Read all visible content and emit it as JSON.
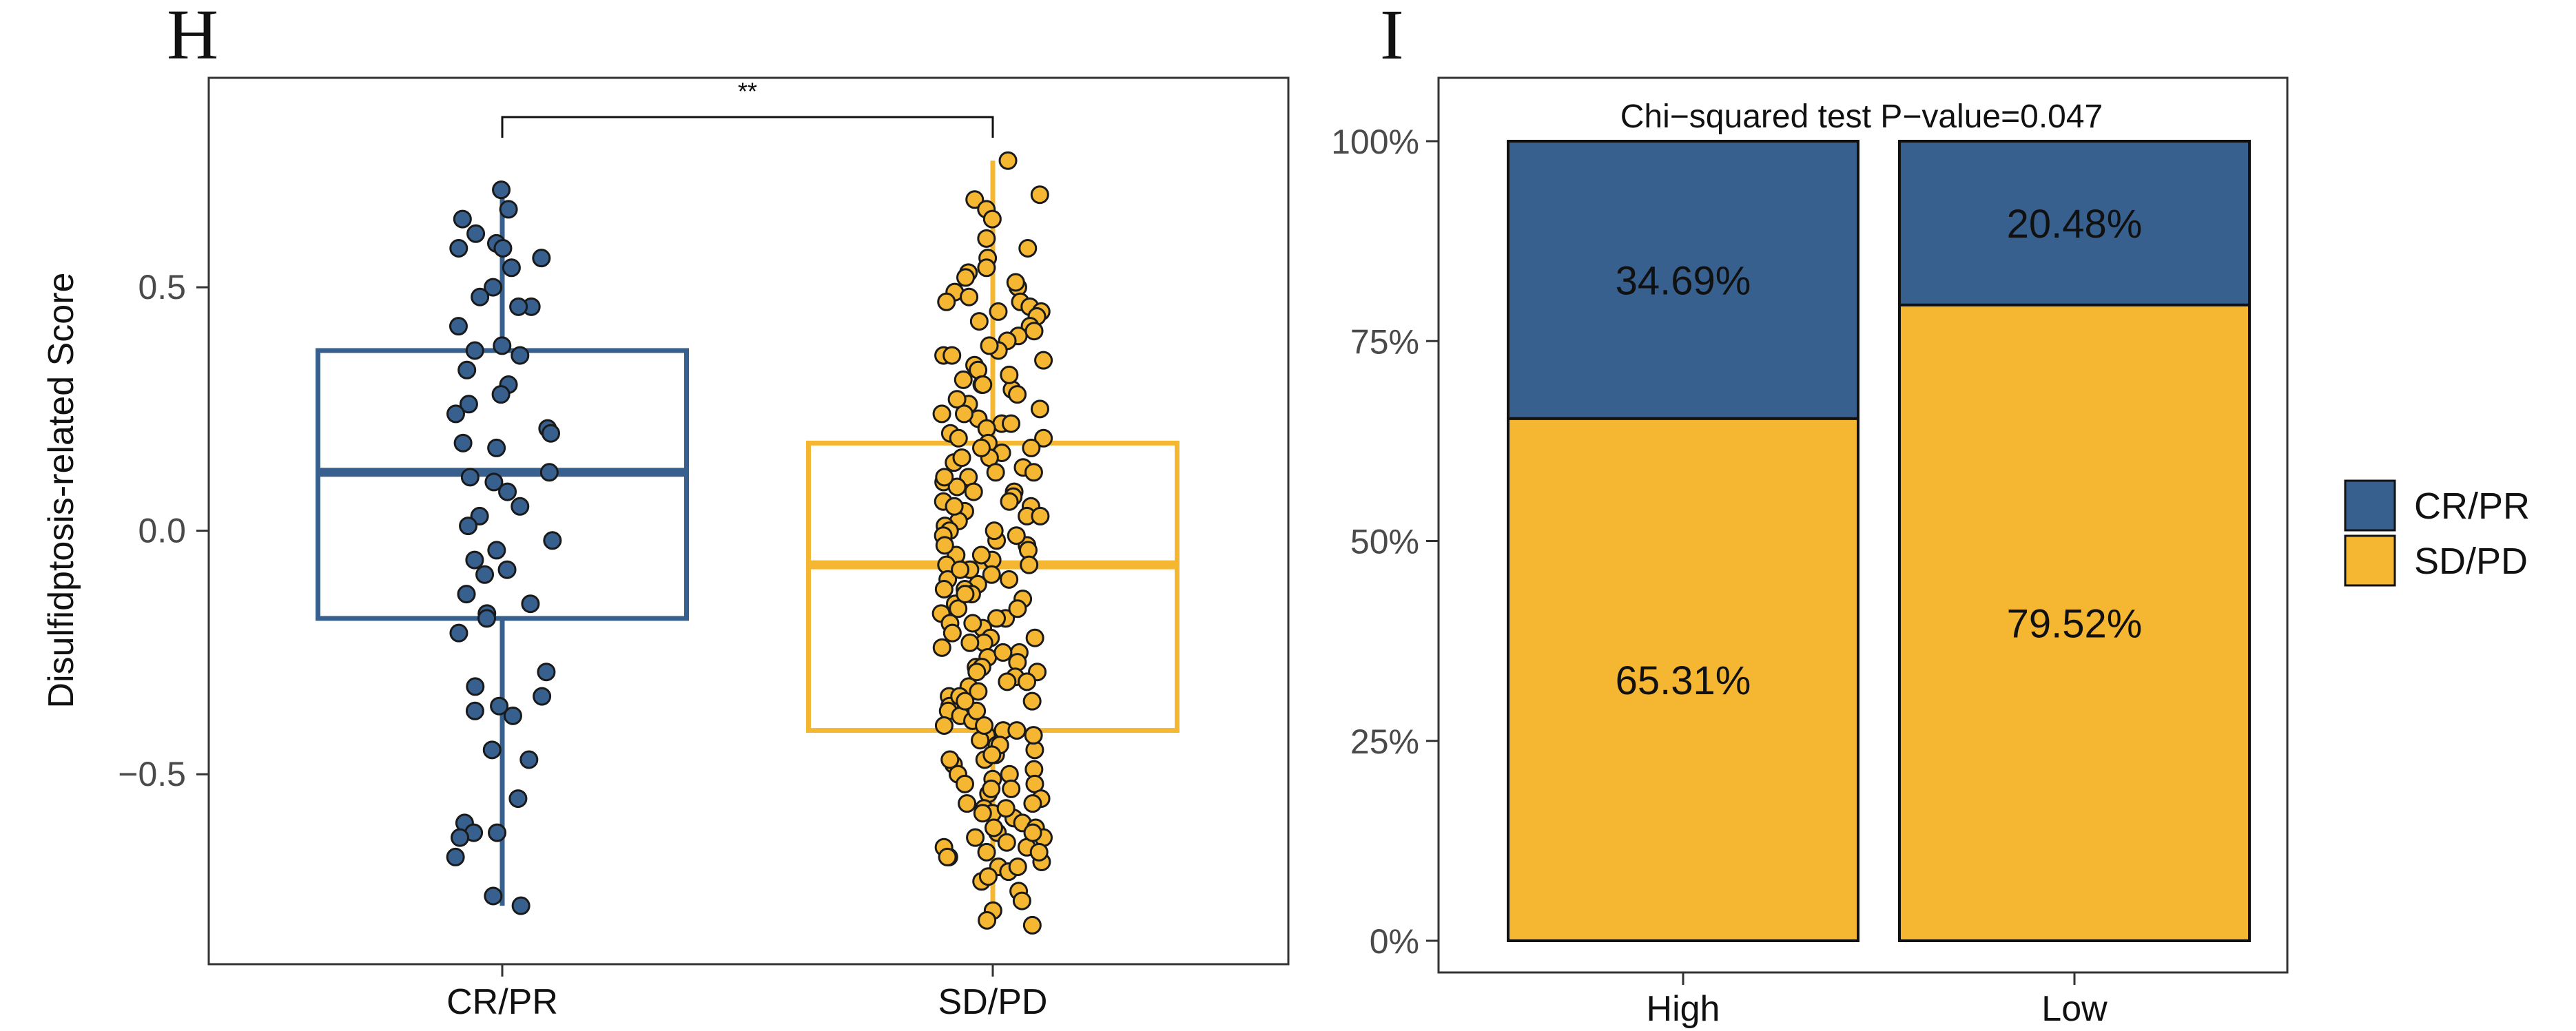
{
  "colors": {
    "crpr": "#37608e",
    "sdpd": "#f5b731",
    "frame": "#333333",
    "point_stroke": "#1a1a1a"
  },
  "chart_data": [
    {
      "panel": "H",
      "type": "box+jitter",
      "ylabel": "Disulfidptosis-related Score",
      "yticks": [
        "0.5",
        "0.0",
        "−0.5"
      ],
      "ytick_values": [
        0.5,
        0.0,
        -0.5
      ],
      "ylim": [
        -0.89,
        0.93
      ],
      "categories": [
        "CR/PR",
        "SD/PD"
      ],
      "significance": "**",
      "boxes": [
        {
          "name": "CR/PR",
          "q1": -0.18,
          "median": 0.12,
          "q3": 0.37,
          "whisker_low": -0.77,
          "whisker_high": 0.7
        },
        {
          "name": "SD/PD",
          "q1": -0.41,
          "median": -0.07,
          "q3": 0.18,
          "whisker_low": -0.81,
          "whisker_high": 0.76
        }
      ],
      "points": [
        {
          "group": "CR/PR",
          "values": [
            0.7,
            0.66,
            0.64,
            0.61,
            0.59,
            0.58,
            0.58,
            0.56,
            0.54,
            0.5,
            0.48,
            0.46,
            0.46,
            0.42,
            0.38,
            0.37,
            0.36,
            0.33,
            0.3,
            0.28,
            0.26,
            0.24,
            0.21,
            0.2,
            0.18,
            0.17,
            0.12,
            0.11,
            0.1,
            0.08,
            0.05,
            0.03,
            0.01,
            -0.02,
            -0.04,
            -0.06,
            -0.08,
            -0.09,
            -0.13,
            -0.15,
            -0.17,
            -0.18,
            -0.21,
            -0.29,
            -0.32,
            -0.34,
            -0.36,
            -0.37,
            -0.38,
            -0.45,
            -0.47,
            -0.55,
            -0.6,
            -0.62,
            -0.62,
            -0.63,
            -0.67,
            -0.75,
            -0.77
          ]
        },
        {
          "group": "SD/PD",
          "values": [
            0.76,
            0.69,
            0.68,
            0.66,
            0.64,
            0.6,
            0.58,
            0.56,
            0.54,
            0.53,
            0.52,
            0.5,
            0.49,
            0.48,
            0.47,
            0.46,
            0.45,
            0.44,
            0.42,
            0.4,
            0.39,
            0.37,
            0.36,
            0.34,
            0.33,
            0.31,
            0.3,
            0.29,
            0.28,
            0.26,
            0.25,
            0.24,
            0.23,
            0.22,
            0.21,
            0.2,
            0.19,
            0.18,
            0.17,
            0.16,
            0.15,
            0.14,
            0.13,
            0.12,
            0.11,
            0.1,
            0.09,
            0.08,
            0.07,
            0.06,
            0.05,
            0.04,
            0.03,
            0.02,
            0.01,
            0.0,
            -0.01,
            -0.02,
            -0.03,
            -0.04,
            -0.05,
            -0.06,
            -0.07,
            -0.08,
            -0.09,
            -0.1,
            -0.11,
            -0.12,
            -0.13,
            -0.14,
            -0.15,
            -0.16,
            -0.17,
            -0.18,
            -0.19,
            -0.2,
            -0.21,
            -0.22,
            -0.23,
            -0.24,
            -0.25,
            -0.26,
            -0.27,
            -0.28,
            -0.29,
            -0.3,
            -0.31,
            -0.32,
            -0.33,
            -0.34,
            -0.35,
            -0.36,
            -0.37,
            -0.38,
            -0.39,
            -0.4,
            -0.41,
            -0.42,
            -0.43,
            -0.44,
            -0.45,
            -0.46,
            -0.47,
            -0.48,
            -0.49,
            -0.5,
            -0.51,
            -0.52,
            -0.53,
            -0.54,
            -0.55,
            -0.56,
            -0.57,
            -0.58,
            -0.59,
            -0.6,
            -0.61,
            -0.62,
            -0.63,
            -0.64,
            -0.65,
            -0.66,
            -0.67,
            -0.68,
            -0.69,
            -0.7,
            -0.72,
            -0.74,
            -0.76,
            -0.78,
            -0.8,
            -0.81,
            0.51,
            0.47,
            0.43,
            0.38,
            0.35,
            0.32,
            0.27,
            0.22,
            0.19,
            0.15,
            0.12,
            0.08,
            0.06,
            0.03,
            0.0,
            -0.03,
            -0.05,
            -0.08,
            -0.1,
            -0.13,
            -0.16,
            -0.19,
            -0.22,
            -0.25,
            -0.28,
            -0.31,
            -0.34,
            -0.37,
            -0.4,
            -0.42,
            -0.44,
            -0.47,
            -0.5,
            -0.53,
            -0.56,
            -0.58,
            -0.61,
            -0.63,
            -0.65,
            -0.67,
            -0.69,
            -0.71,
            0.45,
            0.41,
            0.36,
            0.3,
            0.24,
            0.17,
            0.11,
            0.05,
            -0.01,
            -0.07,
            -0.12,
            -0.18,
            -0.23,
            -0.29,
            -0.35,
            -0.41,
            -0.46,
            -0.52,
            -0.57,
            -0.62,
            -0.66
          ]
        }
      ]
    },
    {
      "panel": "I",
      "type": "stacked_bar_percent",
      "annotation": "Chi−squared test P−value=0.047",
      "categories": [
        "High",
        "Low"
      ],
      "yticks": [
        "0%",
        "25%",
        "50%",
        "75%",
        "100%"
      ],
      "ytick_values": [
        0,
        25,
        50,
        75,
        100
      ],
      "ylim": [
        0,
        100
      ],
      "series": [
        {
          "name": "SD/PD",
          "values": [
            65.31,
            79.52
          ],
          "labels": [
            "65.31%",
            "79.52%"
          ]
        },
        {
          "name": "CR/PR",
          "values": [
            34.69,
            20.48
          ],
          "labels": [
            "34.69%",
            "20.48%"
          ]
        }
      ],
      "legend": {
        "items": [
          "CR/PR",
          "SD/PD"
        ],
        "position": "right"
      }
    }
  ]
}
